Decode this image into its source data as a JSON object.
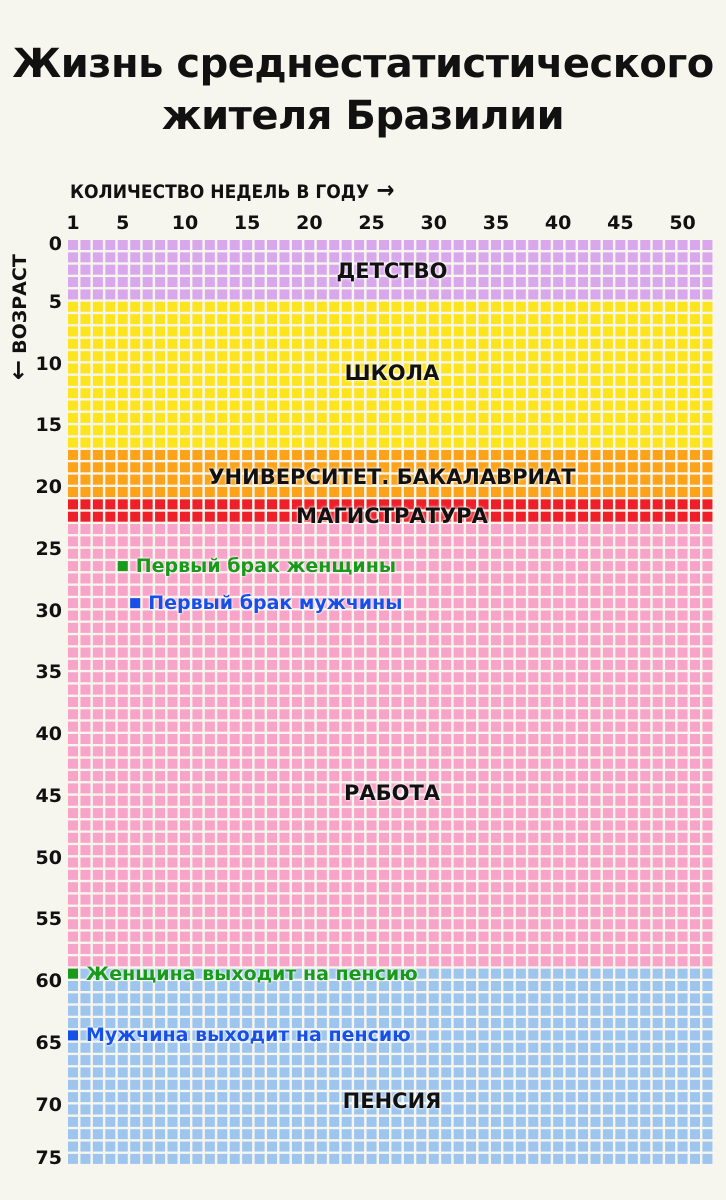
{
  "title": {
    "line1": "Жизнь среднестатистического",
    "line2": "жителя Бразилии"
  },
  "x_axis": {
    "label": "КОЛИЧЕСТВО НЕДЕЛЬ В ГОДУ",
    "arrow_icon": "arrow-right-icon",
    "ticks": [
      1,
      5,
      10,
      15,
      20,
      25,
      30,
      35,
      40,
      45,
      50
    ]
  },
  "y_axis": {
    "label": "ВОЗРАСТ",
    "arrow_icon": "arrow-down-icon",
    "ticks": [
      0,
      5,
      10,
      15,
      20,
      25,
      30,
      35,
      40,
      45,
      50,
      55,
      60,
      65,
      70,
      75
    ]
  },
  "grid": {
    "weeks_per_year": 52,
    "years": 75
  },
  "periods": [
    {
      "label": "ДЕТСТВО",
      "start_age": 0,
      "end_age": 5,
      "color": "#d9a8ec"
    },
    {
      "label": "ШКОЛА",
      "start_age": 5,
      "end_age": 17,
      "color": "#fce51f"
    },
    {
      "label": "УНИВЕРСИТЕТ. БАКАЛАВРИАТ",
      "start_age": 17,
      "end_age": 21,
      "color": "#fca31a"
    },
    {
      "label": "МАГИСТРАТУРА",
      "start_age": 21,
      "end_age": 23,
      "color": "#ee1f29"
    },
    {
      "label": "РАБОТА",
      "start_age": 23,
      "end_age": 59,
      "color": "#f8a3c8"
    },
    {
      "label": "ПЕНСИЯ",
      "start_age": 59,
      "end_age": 75,
      "color": "#9dc5ee"
    }
  ],
  "events": [
    {
      "label": "Первый брак женщины",
      "age": 26,
      "week": 5,
      "color": "#1a9a1a"
    },
    {
      "label": "Первый брак мужчины",
      "age": 29,
      "week": 6,
      "color": "#1650e6"
    },
    {
      "label": "Женщина выходит на пенсию",
      "age": 59,
      "week": 1,
      "color": "#1a9a1a"
    },
    {
      "label": "Мужчина выходит на пенсию",
      "age": 64,
      "week": 1,
      "color": "#1650e6"
    }
  ]
}
